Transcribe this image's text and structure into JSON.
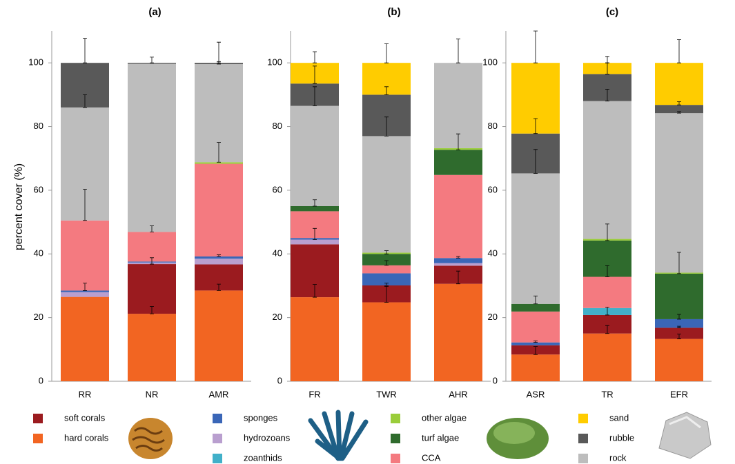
{
  "chart_data": [
    {
      "type": "bar",
      "title": "(a)",
      "ylabel": "percent cover (%)",
      "categories": [
        "RR",
        "NR",
        "AMR"
      ],
      "ylim": [
        0,
        110
      ],
      "yticks": [
        0,
        20,
        40,
        60,
        80,
        100
      ],
      "series": [
        {
          "values": [
            26.5,
            21.2,
            28.5
          ],
          "errors": [
            null,
            2.3,
            2.0
          ]
        },
        {
          "values": [
            0,
            15.6,
            8.2
          ],
          "errors": [
            null,
            2.0,
            null
          ]
        },
        {
          "values": [
            0,
            0,
            0
          ],
          "errors": [
            null,
            null,
            null
          ]
        },
        {
          "values": [
            1.5,
            0.5,
            1.8
          ],
          "errors": [
            null,
            null,
            null
          ]
        },
        {
          "values": [
            0.5,
            0.3,
            0.7
          ],
          "errors": [
            2.3,
            null,
            0.5
          ]
        },
        {
          "values": [
            22,
            9.3,
            29.1
          ],
          "errors": [
            9.8,
            1.9,
            null
          ]
        },
        {
          "values": [
            0,
            0,
            0
          ],
          "errors": [
            null,
            null,
            null
          ]
        },
        {
          "values": [
            0,
            0,
            0.5
          ],
          "errors": [
            null,
            null,
            6.2
          ]
        },
        {
          "values": [
            35.5,
            52.8,
            30.8
          ],
          "errors": [
            4.0,
            null,
            0.8
          ]
        },
        {
          "values": [
            14,
            0.3,
            0.4
          ],
          "errors": [
            7.7,
            1.8,
            6.5
          ]
        },
        {
          "values": [
            0,
            0,
            0
          ],
          "errors": [
            null,
            null,
            null
          ]
        }
      ]
    },
    {
      "type": "bar",
      "title": "(b)",
      "categories": [
        "FR",
        "TWR",
        "AHR"
      ],
      "ylim": [
        0,
        110
      ],
      "yticks": [
        0,
        20,
        40,
        60,
        80,
        100
      ],
      "series": [
        {
          "values": [
            26.4,
            24.8,
            30.6
          ],
          "errors": [
            4.0,
            5.0,
            4.0
          ]
        },
        {
          "values": [
            16.6,
            5.3,
            5.7
          ],
          "errors": [
            null,
            0.7,
            null
          ]
        },
        {
          "values": [
            0,
            0,
            0
          ],
          "errors": [
            null,
            null,
            null
          ]
        },
        {
          "values": [
            1.5,
            0,
            0.8
          ],
          "errors": [
            3.5,
            null,
            null
          ]
        },
        {
          "values": [
            0.5,
            3.8,
            1.6
          ],
          "errors": [
            null,
            null,
            0.5
          ]
        },
        {
          "values": [
            8.4,
            2.5,
            26.1
          ],
          "errors": [
            null,
            1.5,
            null
          ]
        },
        {
          "values": [
            1.6,
            3.6,
            7.9
          ],
          "errors": [
            2.0,
            1.0,
            5.0
          ]
        },
        {
          "values": [
            0,
            0.4,
            0.5
          ],
          "errors": [
            null,
            null,
            null
          ]
        },
        {
          "values": [
            31.5,
            36.6,
            26.8
          ],
          "errors": [
            6.0,
            6.0,
            7.5
          ]
        },
        {
          "values": [
            7,
            13,
            0
          ],
          "errors": [
            5.5,
            2.5,
            null
          ]
        },
        {
          "values": [
            6.5,
            10,
            0
          ],
          "errors": [
            3.5,
            6.0,
            null
          ]
        }
      ]
    },
    {
      "type": "bar",
      "title": "(c)",
      "categories": [
        "ASR",
        "TR",
        "EFR"
      ],
      "ylim": [
        0,
        110
      ],
      "yticks": [
        0,
        20,
        40,
        60,
        80,
        100
      ],
      "series": [
        {
          "values": [
            8.4,
            15,
            13.3
          ],
          "errors": [
            2.5,
            2.5,
            1.5
          ]
        },
        {
          "values": [
            2.9,
            5.8,
            3.5
          ],
          "errors": [
            null,
            2.5,
            0.5
          ]
        },
        {
          "values": [
            0,
            2.2,
            0
          ],
          "errors": [
            null,
            null,
            null
          ]
        },
        {
          "values": [
            0,
            0,
            0
          ],
          "errors": [
            null,
            null,
            null
          ]
        },
        {
          "values": [
            0.9,
            0,
            2.7
          ],
          "errors": [
            0.5,
            null,
            1.5
          ]
        },
        {
          "values": [
            9.7,
            9.8,
            0
          ],
          "errors": [
            null,
            3.5,
            null
          ]
        },
        {
          "values": [
            2.4,
            11.4,
            14.3
          ],
          "errors": [
            2.5,
            5.2,
            6.7
          ]
        },
        {
          "values": [
            0,
            0.5,
            0.3
          ],
          "errors": [
            null,
            null,
            null
          ]
        },
        {
          "values": [
            41,
            43.3,
            50.1
          ],
          "errors": [
            7.5,
            3.7,
            0.5
          ]
        },
        {
          "values": [
            12.5,
            8.5,
            2.6
          ],
          "errors": [
            4.7,
            3.5,
            1.0
          ]
        },
        {
          "values": [
            22.2,
            3.5,
            13.2
          ],
          "errors": [
            10,
            2.0,
            7.3
          ]
        }
      ]
    }
  ],
  "legend": [
    {
      "name": "hard corals",
      "color": "#f26522"
    },
    {
      "name": "soft corals",
      "color": "#9b1b1f"
    },
    {
      "name": "zoanthids",
      "color": "#41b0c9"
    },
    {
      "name": "hydrozoans",
      "color": "#b99fcf"
    },
    {
      "name": "sponges",
      "color": "#3a66b7"
    },
    {
      "name": "CCA",
      "color": "#f47a80"
    },
    {
      "name": "turf algae",
      "color": "#2f6b2d"
    },
    {
      "name": "other algae",
      "color": "#9acd3a"
    },
    {
      "name": "rock",
      "color": "#bdbdbd"
    },
    {
      "name": "rubble",
      "color": "#595959"
    },
    {
      "name": "sand",
      "color": "#ffcc00"
    }
  ]
}
